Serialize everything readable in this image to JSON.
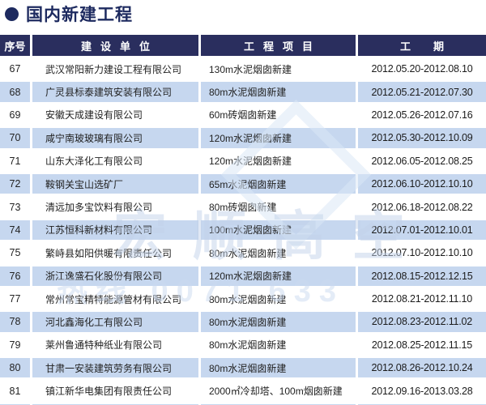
{
  "title": "国内新建工程",
  "colors": {
    "header_navy": "#2a2e5e",
    "title_navy": "#1d2a5f",
    "row_alt_blue": "#c6d7ef",
    "watermark_blue": "#c3d3ea"
  },
  "watermark": {
    "line1": "宏顺高空",
    "line2": "热线 0071 633"
  },
  "table": {
    "headers": [
      "序号",
      "建设单位",
      "工程项目",
      "工期"
    ],
    "rows": [
      {
        "no": "67",
        "company": "武汉常阳新力建设工程有限公司",
        "project": "130m水泥烟囱新建",
        "period": "2012.05.20-2012.08.10"
      },
      {
        "no": "68",
        "company": "广灵县标泰建筑安装有限公司",
        "project": "80m水泥烟囱新建",
        "period": "2012.05.21-2012.07.30"
      },
      {
        "no": "69",
        "company": "安徽天成建设有限公司",
        "project": "60m砖烟囱新建",
        "period": "2012.05.26-2012.07.16"
      },
      {
        "no": "70",
        "company": "咸宁南玻玻璃有限公司",
        "project": "120m水泥烟囱新建",
        "period": "2012.05.30-2012.10.09"
      },
      {
        "no": "71",
        "company": "山东大泽化工有限公司",
        "project": "120m水泥烟囱新建",
        "period": "2012.06.05-2012.08.25"
      },
      {
        "no": "72",
        "company": "鞍钢关宝山选矿厂",
        "project": "65m水泥烟囱新建",
        "period": "2012.06.10-2012.10.10"
      },
      {
        "no": "73",
        "company": "清远加多宝饮料有限公司",
        "project": "80m砖烟囱新建",
        "period": "2012.06.18-2012.08.22"
      },
      {
        "no": "74",
        "company": "江苏恒科新材料有限公司",
        "project": "100m水泥烟囱新建",
        "period": "2012.07.01-2012.10.01"
      },
      {
        "no": "75",
        "company": "繁峙县如阳供暖有限责任公司",
        "project": "80m水泥烟囱新建",
        "period": "2012.07.10-2012.10.10"
      },
      {
        "no": "76",
        "company": "浙江逸盛石化股份有限公司",
        "project": "120m水泥烟囱新建",
        "period": "2012.08.15-2012.12.15"
      },
      {
        "no": "77",
        "company": "常州常宝精特能源管材有限公司",
        "project": "80m水泥烟囱新建",
        "period": "2012.08.21-2012.11.10"
      },
      {
        "no": "78",
        "company": "河北鑫海化工有限公司",
        "project": "80m水泥烟囱新建",
        "period": "2012.08.23-2012.11.02"
      },
      {
        "no": "79",
        "company": "莱州鲁通特种纸业有限公司",
        "project": "80m水泥烟囱新建",
        "period": "2012.08.25-2012.11.15"
      },
      {
        "no": "80",
        "company": "甘肃一安装建筑劳务有限公司",
        "project": "80m水泥烟囱新建",
        "period": "2012.08.26-2012.10.24"
      },
      {
        "no": "81",
        "company": "镇江新华电集团有限责任公司",
        "project": "2000㎡冷却塔、100m烟囱新建",
        "period": "2012.09.16-2013.03.28"
      }
    ]
  }
}
